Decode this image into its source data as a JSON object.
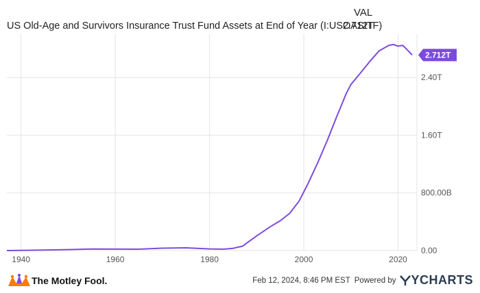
{
  "header": {
    "column_label": "VAL",
    "series_title": "US Old-Age and Survivors Insurance Trust Fund Assets at End of Year (I:USOASITF)",
    "series_value": "2.712T"
  },
  "footer": {
    "brand": "The Motley Fool.",
    "timestamp": "Feb 12, 2024, 8:46 PM EST",
    "powered_by": "Powered by",
    "provider": "YCHARTS"
  },
  "colors": {
    "line": "#7b4bdc",
    "grid": "#e4e4e4",
    "axis_text": "#555555"
  },
  "chart_data": {
    "type": "line",
    "title": "US Old-Age and Survivors Insurance Trust Fund Assets at End of Year (I:USOASITF)",
    "xlabel": "",
    "ylabel": "",
    "xlim": [
      1937,
      2024
    ],
    "ylim": [
      0,
      3.0
    ],
    "y_unit": "trillions USD",
    "x_ticks": [
      "1940",
      "1960",
      "1980",
      "2000",
      "2020"
    ],
    "x_tick_values": [
      1940,
      1960,
      1980,
      2000,
      2020
    ],
    "y_ticks": [
      "0.00",
      "800.00B",
      "1.60T",
      "2.40T"
    ],
    "y_tick_values": [
      0,
      0.8,
      1.6,
      2.4
    ],
    "grid": true,
    "last_value_label": "2.712T",
    "series": [
      {
        "name": "US Old-Age and Survivors Insurance Trust Fund Assets at End of Year",
        "x": [
          1937,
          1940,
          1945,
          1950,
          1955,
          1960,
          1965,
          1970,
          1975,
          1980,
          1983,
          1985,
          1987,
          1990,
          1993,
          1995,
          1997,
          1999,
          2001,
          2003,
          2005,
          2007,
          2009,
          2010,
          2012,
          2014,
          2016,
          2018,
          2019,
          2020,
          2021,
          2022,
          2023
        ],
        "values": [
          0.0,
          0.002,
          0.007,
          0.013,
          0.021,
          0.02,
          0.019,
          0.033,
          0.038,
          0.023,
          0.019,
          0.031,
          0.061,
          0.203,
          0.335,
          0.413,
          0.516,
          0.686,
          0.942,
          1.226,
          1.529,
          1.858,
          2.177,
          2.304,
          2.46,
          2.623,
          2.77,
          2.844,
          2.858,
          2.835,
          2.845,
          2.78,
          2.712
        ]
      }
    ]
  }
}
